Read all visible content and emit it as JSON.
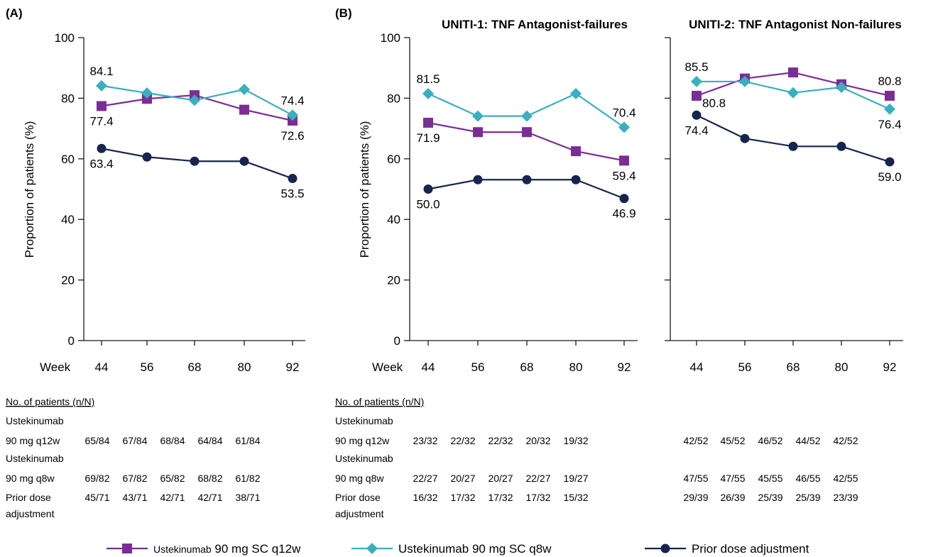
{
  "figure": {
    "panel_a_label": "(A)",
    "panel_b_label": "(B)",
    "week_label": "Week"
  },
  "chart_data": [
    {
      "type": "line",
      "panel": "(A)",
      "title": "",
      "xlabel": "Week",
      "ylabel": "Proportion of patients (%)",
      "ylim": [
        0,
        100
      ],
      "yticks": [
        0,
        20,
        40,
        60,
        80,
        100
      ],
      "x": [
        44,
        56,
        68,
        80,
        92
      ],
      "grid": false,
      "series": [
        {
          "name": "Ustekinumab 90 mg SC q12w",
          "color": "#7b2d96",
          "marker": "square",
          "values": [
            77.4,
            79.8,
            81.0,
            76.2,
            72.6
          ]
        },
        {
          "name": "Ustekinumab 90 mg SC q8w",
          "color": "#3aafbf",
          "marker": "diamond",
          "values": [
            84.1,
            81.7,
            79.3,
            82.9,
            74.4
          ]
        },
        {
          "name": "Prior dose adjustment",
          "color": "#16254f",
          "marker": "circle",
          "values": [
            63.4,
            60.6,
            59.2,
            59.2,
            53.5
          ]
        }
      ],
      "labels": [
        {
          "series": 1,
          "point": 0,
          "text": "84.1",
          "pos": "above"
        },
        {
          "series": 0,
          "point": 0,
          "text": "77.4",
          "pos": "below"
        },
        {
          "series": 1,
          "point": 4,
          "text": "74.4",
          "pos": "above"
        },
        {
          "series": 0,
          "point": 4,
          "text": "72.6",
          "pos": "below"
        },
        {
          "series": 2,
          "point": 0,
          "text": "63.4",
          "pos": "below"
        },
        {
          "series": 2,
          "point": 4,
          "text": "53.5",
          "pos": "below"
        }
      ]
    },
    {
      "type": "line",
      "panel": "(B)",
      "title": "UNITI-1: TNF Antagonist-failures",
      "xlabel": "Week",
      "ylabel": "Proportion of patients (%)",
      "ylim": [
        0,
        100
      ],
      "yticks": [
        0,
        20,
        40,
        60,
        80,
        100
      ],
      "x": [
        44,
        56,
        68,
        80,
        92
      ],
      "grid": false,
      "series": [
        {
          "name": "Ustekinumab 90 mg SC q12w",
          "color": "#7b2d96",
          "marker": "square",
          "values": [
            71.9,
            68.8,
            68.8,
            62.5,
            59.4
          ]
        },
        {
          "name": "Ustekinumab 90 mg SC q8w",
          "color": "#3aafbf",
          "marker": "diamond",
          "values": [
            81.5,
            74.1,
            74.1,
            81.5,
            70.4
          ]
        },
        {
          "name": "Prior dose adjustment",
          "color": "#16254f",
          "marker": "circle",
          "values": [
            50.0,
            53.1,
            53.1,
            53.1,
            46.9
          ]
        }
      ],
      "labels": [
        {
          "series": 1,
          "point": 0,
          "text": "81.5",
          "pos": "above"
        },
        {
          "series": 0,
          "point": 0,
          "text": "71.9",
          "pos": "below"
        },
        {
          "series": 1,
          "point": 4,
          "text": "70.4",
          "pos": "above"
        },
        {
          "series": 0,
          "point": 4,
          "text": "59.4",
          "pos": "below"
        },
        {
          "series": 2,
          "point": 0,
          "text": "50.0",
          "pos": "below"
        },
        {
          "series": 2,
          "point": 4,
          "text": "46.9",
          "pos": "below"
        }
      ]
    },
    {
      "type": "line",
      "panel": "(B)",
      "title": "UNITI-2: TNF Antagonist Non-failures",
      "xlabel": "",
      "ylabel": "",
      "ylim": [
        0,
        100
      ],
      "x": [
        44,
        56,
        68,
        80,
        92
      ],
      "grid": false,
      "series": [
        {
          "name": "Ustekinumab 90 mg SC q12w",
          "color": "#7b2d96",
          "marker": "square",
          "values": [
            80.8,
            86.5,
            88.5,
            84.6,
            80.8
          ]
        },
        {
          "name": "Ustekinumab 90 mg SC q8w",
          "color": "#3aafbf",
          "marker": "diamond",
          "values": [
            85.5,
            85.5,
            81.8,
            83.6,
            76.4
          ]
        },
        {
          "name": "Prior dose adjustment",
          "color": "#16254f",
          "marker": "circle",
          "values": [
            74.4,
            66.7,
            64.1,
            64.1,
            59.0
          ]
        }
      ],
      "labels": [
        {
          "series": 1,
          "point": 0,
          "text": "85.5",
          "pos": "above"
        },
        {
          "series": 0,
          "point": 0,
          "text": "80.8",
          "pos": "right-below"
        },
        {
          "series": 0,
          "point": 4,
          "text": "80.8",
          "pos": "above"
        },
        {
          "series": 1,
          "point": 4,
          "text": "76.4",
          "pos": "below"
        },
        {
          "series": 2,
          "point": 0,
          "text": "74.4",
          "pos": "below"
        },
        {
          "series": 2,
          "point": 4,
          "text": "59.0",
          "pos": "below"
        }
      ]
    }
  ],
  "tables": {
    "header": "No. of patients (n/N)",
    "row_labels": {
      "q12w_line1": "Ustekinumab",
      "q12w_line2": "90 mg q12w",
      "q8w_line1": "Ustekinumab",
      "q8w_line2": "90 mg q8w",
      "prior_line1": "Prior dose",
      "prior_line2": "adjustment"
    },
    "a": {
      "q12w": [
        "65/84",
        "67/84",
        "68/84",
        "64/84",
        "61/84"
      ],
      "q8w": [
        "69/82",
        "67/82",
        "65/82",
        "68/82",
        "61/82"
      ],
      "prior": [
        "45/71",
        "43/71",
        "42/71",
        "42/71",
        "38/71"
      ]
    },
    "b1": {
      "q12w": [
        "23/32",
        "22/32",
        "22/32",
        "20/32",
        "19/32"
      ],
      "q8w": [
        "22/27",
        "20/27",
        "20/27",
        "22/27",
        "19/27"
      ],
      "prior": [
        "16/32",
        "17/32",
        "17/32",
        "17/32",
        "15/32"
      ]
    },
    "b2": {
      "q12w": [
        "42/52",
        "45/52",
        "46/52",
        "44/52",
        "42/52"
      ],
      "q8w": [
        "47/55",
        "47/55",
        "45/55",
        "46/55",
        "42/55"
      ],
      "prior": [
        "29/39",
        "26/39",
        "25/39",
        "25/39",
        "23/39"
      ]
    }
  },
  "legend": {
    "items": [
      {
        "brand": "Ustekinumab",
        "rest": " 90 mg SC q12w",
        "color": "#7b2d96",
        "marker": "square"
      },
      {
        "brand": "Ustekinumab",
        "rest": " 90 mg SC q8w",
        "color": "#3aafbf",
        "marker": "diamond"
      },
      {
        "brand": "",
        "rest": "Prior dose adjustment",
        "color": "#16254f",
        "marker": "circle"
      }
    ]
  }
}
